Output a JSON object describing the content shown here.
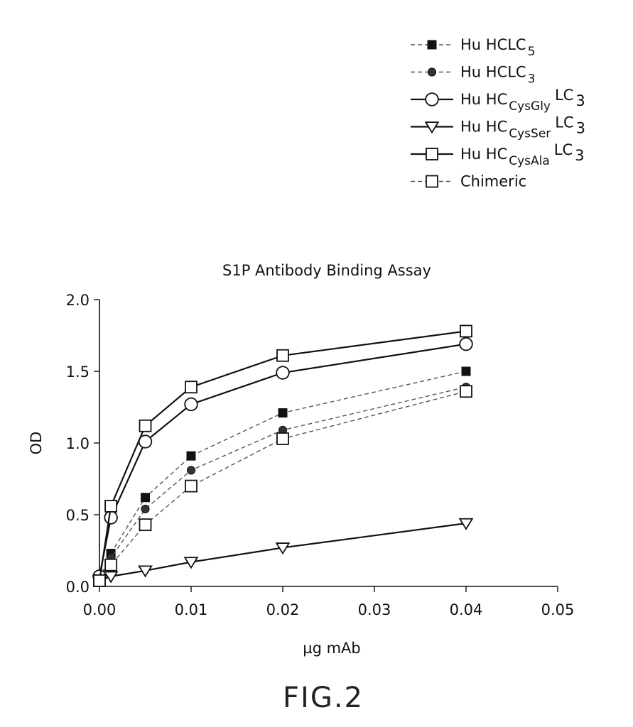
{
  "chart_data": {
    "type": "line",
    "title": "S1P Antibody Binding Assay",
    "xlabel": "µg mAb",
    "ylabel": "OD",
    "xlim": [
      0,
      0.05
    ],
    "ylim": [
      0,
      2.0
    ],
    "x_ticks": [
      "0.00",
      "0.01",
      "0.02",
      "0.03",
      "0.04",
      "0.05"
    ],
    "y_ticks": [
      "0.0",
      "0.5",
      "1.0",
      "1.5",
      "2.0"
    ],
    "x": [
      0.0,
      0.00125,
      0.005,
      0.01,
      0.02,
      0.04
    ],
    "series": [
      {
        "name": "Hu HCLC5",
        "label_main": "Hu  HCLC",
        "label_sub": "5",
        "label_suffix": "",
        "line": "dashed",
        "marker": "square-filled",
        "values": [
          0.05,
          0.23,
          0.62,
          0.91,
          1.21,
          1.5
        ]
      },
      {
        "name": "Hu HCLC3",
        "label_main": "Hu  HCLC",
        "label_sub": "3",
        "label_suffix": "",
        "line": "dashed",
        "marker": "circle-filled",
        "values": [
          0.05,
          0.2,
          0.54,
          0.81,
          1.09,
          1.39
        ]
      },
      {
        "name": "Hu HCCysGly LC3",
        "label_main": "Hu  HC",
        "label_sub": "CysGly",
        "label_suffix": "LC",
        "label_suffix_sub": "3",
        "line": "solid",
        "marker": "circle-open",
        "values": [
          0.07,
          0.48,
          1.01,
          1.27,
          1.49,
          1.69
        ]
      },
      {
        "name": "Hu HCCysSer LC3",
        "label_main": "Hu  HC",
        "label_sub": "CysSer",
        "label_suffix": "LC",
        "label_suffix_sub": "3",
        "line": "solid",
        "marker": "triangle-down-open",
        "values": [
          0.04,
          0.07,
          0.11,
          0.17,
          0.27,
          0.44
        ]
      },
      {
        "name": "Hu HCCysAla LC3",
        "label_main": "Hu  HC",
        "label_sub": "CysAla",
        "label_suffix": "LC",
        "label_suffix_sub": "3",
        "line": "solid",
        "marker": "square-open",
        "values": [
          0.04,
          0.56,
          1.12,
          1.39,
          1.61,
          1.78
        ]
      },
      {
        "name": "Chimeric",
        "label_main": "Chimeric",
        "label_sub": "",
        "label_suffix": "",
        "line": "dashed",
        "marker": "square-open",
        "values": [
          0.04,
          0.15,
          0.43,
          0.7,
          1.03,
          1.36
        ]
      }
    ],
    "legend_position": "top-right",
    "grid": false
  },
  "figure_label": "FIG.2"
}
